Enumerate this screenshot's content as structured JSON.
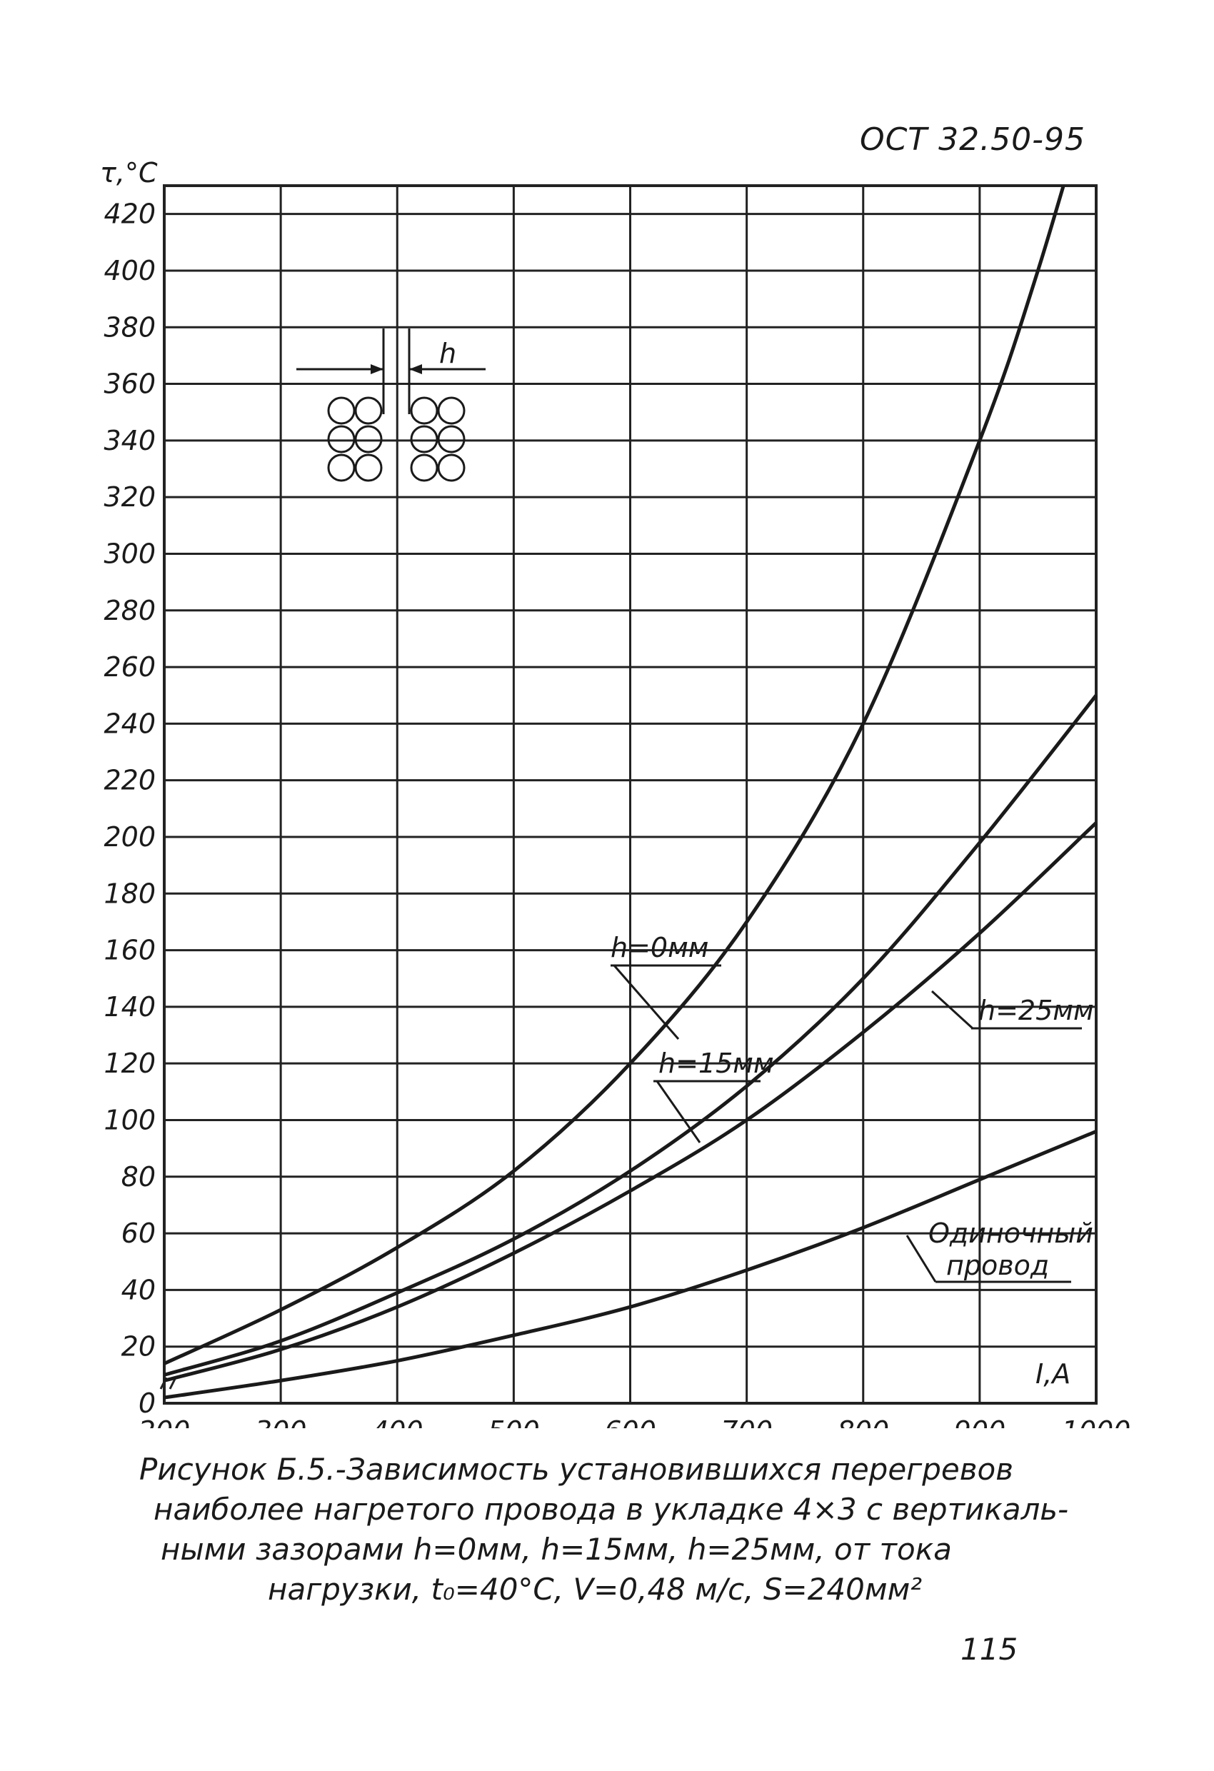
{
  "document": {
    "code": "ОСТ 32.50-95",
    "page_number": "115",
    "caption": [
      "Рисунок Б.5.-Зависимость установившихся перегревов",
      "наиболее нагретого провода в укладке 4×3 с вертикаль-",
      "ными зазорами h=0мм, h=15мм, h=25мм, от тока",
      "нагрузки, t₀=40°С, V=0,48 м/с, S=240мм²"
    ]
  },
  "chart_data": {
    "type": "line",
    "ylabel": "τ,°C",
    "xlabel": "I,A",
    "xlim": [
      200,
      1000
    ],
    "ylim": [
      0,
      430
    ],
    "x_ticks": [
      200,
      300,
      400,
      500,
      600,
      700,
      800,
      900,
      1000
    ],
    "y_ticks": [
      0,
      20,
      40,
      60,
      80,
      100,
      120,
      140,
      160,
      180,
      200,
      220,
      240,
      260,
      280,
      300,
      320,
      340,
      360,
      380,
      400,
      420
    ],
    "grid": true,
    "inset_label": "h",
    "series": [
      {
        "name": "h=0мм",
        "x": [
          200,
          300,
          400,
          500,
          600,
          700,
          800,
          900,
          950,
          1000
        ],
        "y": [
          14,
          33,
          55,
          82,
          120,
          170,
          240,
          340,
          400,
          470
        ]
      },
      {
        "name": "h=15мм",
        "x": [
          200,
          300,
          400,
          500,
          600,
          700,
          800,
          900,
          1000
        ],
        "y": [
          10,
          22,
          39,
          58,
          82,
          112,
          150,
          198,
          250
        ]
      },
      {
        "name": "h=25мм",
        "x": [
          200,
          300,
          400,
          500,
          600,
          700,
          800,
          900,
          1000
        ],
        "y": [
          8,
          19,
          34,
          53,
          75,
          100,
          131,
          166,
          205
        ]
      },
      {
        "name": "Одиночный провод",
        "x": [
          200,
          300,
          400,
          500,
          600,
          700,
          800,
          900,
          1000
        ],
        "y": [
          2,
          8,
          15,
          24,
          34,
          47,
          62,
          79,
          96
        ]
      }
    ]
  }
}
